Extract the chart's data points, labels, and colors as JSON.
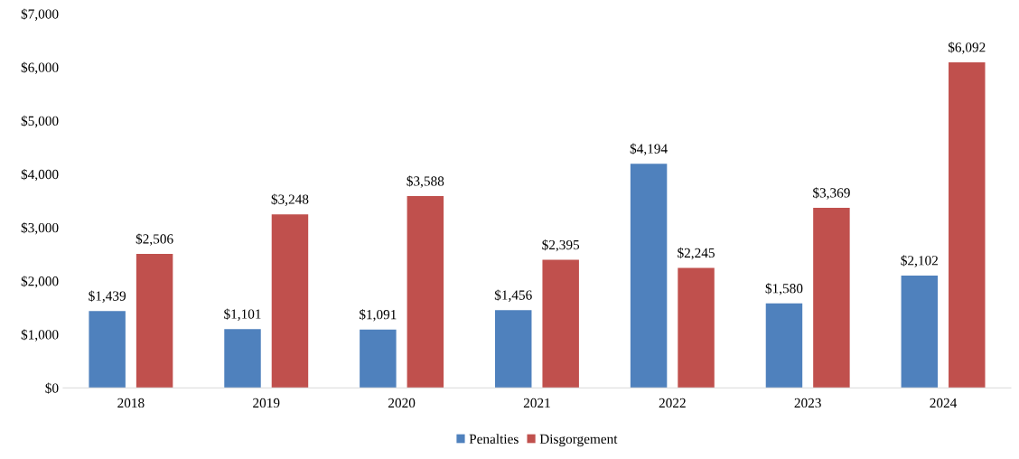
{
  "chart_data": {
    "type": "bar",
    "categories": [
      "2018",
      "2019",
      "2020",
      "2021",
      "2022",
      "2023",
      "2024"
    ],
    "series": [
      {
        "name": "Penalties",
        "color": "#4f81bd",
        "values": [
          1439,
          1101,
          1091,
          1456,
          4194,
          1580,
          2102
        ],
        "value_labels": [
          "$1,439",
          "$1,101",
          "$1,091",
          "$1,456",
          "$4,194",
          "$1,580",
          "$2,102"
        ]
      },
      {
        "name": "Disgorgement",
        "color": "#c0504d",
        "values": [
          2506,
          3248,
          3588,
          2395,
          2245,
          3369,
          6092
        ],
        "value_labels": [
          "$2,506",
          "$3,248",
          "$3,588",
          "$2,395",
          "$2,245",
          "$3,369",
          "$6,092"
        ]
      }
    ],
    "ylim": [
      0,
      7000
    ],
    "yticks": [
      {
        "value": 0,
        "label": "$0"
      },
      {
        "value": 1000,
        "label": "$1,000"
      },
      {
        "value": 2000,
        "label": "$2,000"
      },
      {
        "value": 3000,
        "label": "$3,000"
      },
      {
        "value": 4000,
        "label": "$4,000"
      },
      {
        "value": 5000,
        "label": "$5,000"
      },
      {
        "value": 6000,
        "label": "$6,000"
      },
      {
        "value": 7000,
        "label": "$7,000"
      }
    ],
    "grid": false,
    "legend": "bottom"
  }
}
